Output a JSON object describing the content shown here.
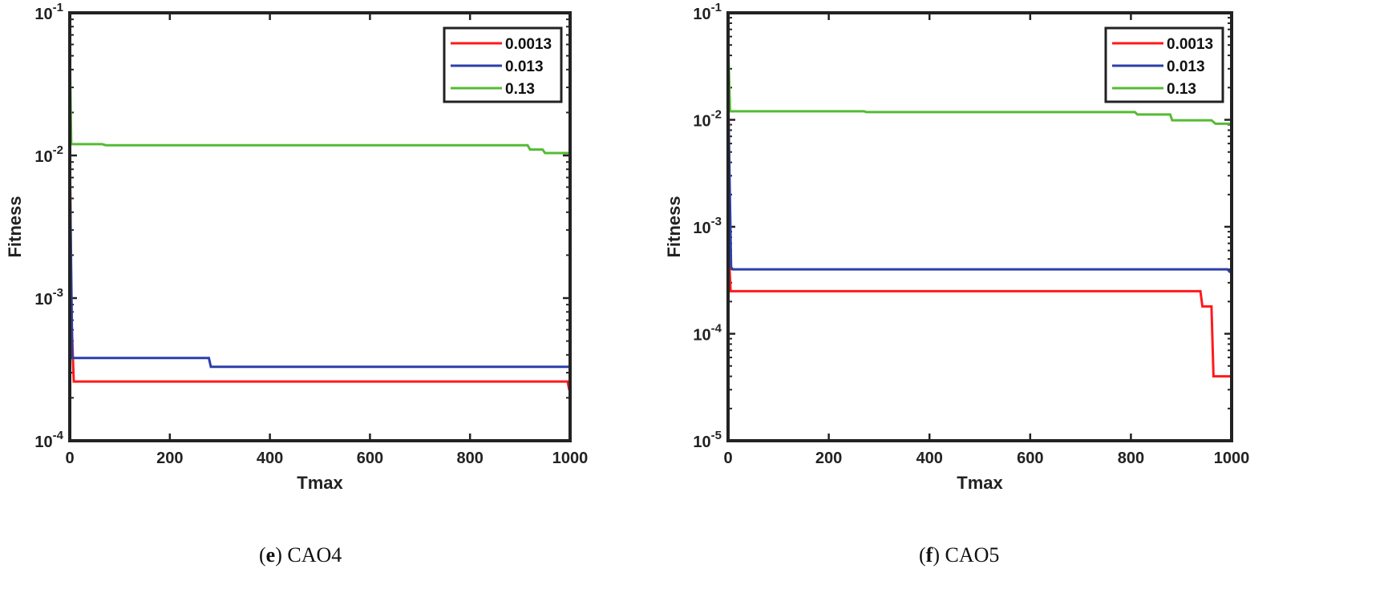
{
  "chart_data": [
    {
      "type": "line",
      "caption_letter": "e",
      "caption_text": "CAO4",
      "xlabel": "Tmax",
      "ylabel": "Fitness",
      "yscale": "log",
      "xlim": [
        0,
        1000
      ],
      "ylim": [
        0.0001,
        0.1
      ],
      "xticks": [
        "0",
        "200",
        "400",
        "600",
        "800",
        "1000"
      ],
      "yticks": [
        {
          "base": "10",
          "exp": "-4",
          "v": 0.0001
        },
        {
          "base": "10",
          "exp": "-3",
          "v": 0.001
        },
        {
          "base": "10",
          "exp": "-2",
          "v": 0.01
        },
        {
          "base": "10",
          "exp": "-1",
          "v": 0.1
        }
      ],
      "legend_position": "top-right",
      "series": [
        {
          "name": "0.0013",
          "color": "#ff1a1a",
          "points": [
            [
              0,
              0.015
            ],
            [
              3,
              0.0008
            ],
            [
              8,
              0.00026
            ],
            [
              995,
              0.00026
            ],
            [
              998,
              0.00023
            ],
            [
              1000,
              0.00023
            ]
          ]
        },
        {
          "name": "0.013",
          "color": "#2b3fa8",
          "points": [
            [
              0,
              0.01
            ],
            [
              5,
              0.00038
            ],
            [
              278,
              0.00038
            ],
            [
              282,
              0.00033
            ],
            [
              1000,
              0.00033
            ]
          ]
        },
        {
          "name": "0.13",
          "color": "#55bb33",
          "points": [
            [
              0,
              0.055
            ],
            [
              3,
              0.012
            ],
            [
              65,
              0.012
            ],
            [
              72,
              0.0118
            ],
            [
              915,
              0.0118
            ],
            [
              920,
              0.011
            ],
            [
              945,
              0.011
            ],
            [
              950,
              0.0104
            ],
            [
              1000,
              0.0104
            ]
          ]
        }
      ]
    },
    {
      "type": "line",
      "caption_letter": "f",
      "caption_text": "CAO5",
      "xlabel": "Tmax",
      "ylabel": "Fitness",
      "yscale": "log",
      "xlim": [
        0,
        1000
      ],
      "ylim": [
        1e-05,
        0.1
      ],
      "xticks": [
        "0",
        "200",
        "400",
        "600",
        "800",
        "1000"
      ],
      "yticks": [
        {
          "base": "10",
          "exp": "-5",
          "v": 1e-05
        },
        {
          "base": "10",
          "exp": "-4",
          "v": 0.0001
        },
        {
          "base": "10",
          "exp": "-3",
          "v": 0.001
        },
        {
          "base": "10",
          "exp": "-2",
          "v": 0.01
        },
        {
          "base": "10",
          "exp": "-1",
          "v": 0.1
        }
      ],
      "legend_position": "top-right",
      "series": [
        {
          "name": "0.0013",
          "color": "#ff1a1a",
          "points": [
            [
              0,
              0.058
            ],
            [
              3,
              0.0004
            ],
            [
              5,
              0.00025
            ],
            [
              938,
              0.00025
            ],
            [
              942,
              0.00018
            ],
            [
              960,
              0.00018
            ],
            [
              964,
              4e-05
            ],
            [
              1000,
              4e-05
            ]
          ]
        },
        {
          "name": "0.013",
          "color": "#2b3fa8",
          "points": [
            [
              0,
              0.02
            ],
            [
              6,
              0.00042
            ],
            [
              9,
              0.0004
            ],
            [
              992,
              0.0004
            ],
            [
              996,
              0.00038
            ],
            [
              1000,
              0.00038
            ]
          ]
        },
        {
          "name": "0.13",
          "color": "#55bb33",
          "points": [
            [
              0,
              0.055
            ],
            [
              4,
              0.012
            ],
            [
              270,
              0.012
            ],
            [
              275,
              0.0118
            ],
            [
              808,
              0.0118
            ],
            [
              813,
              0.0112
            ],
            [
              878,
              0.0112
            ],
            [
              882,
              0.0099
            ],
            [
              960,
              0.0099
            ],
            [
              968,
              0.0092
            ],
            [
              1000,
              0.0092
            ]
          ]
        }
      ]
    }
  ]
}
